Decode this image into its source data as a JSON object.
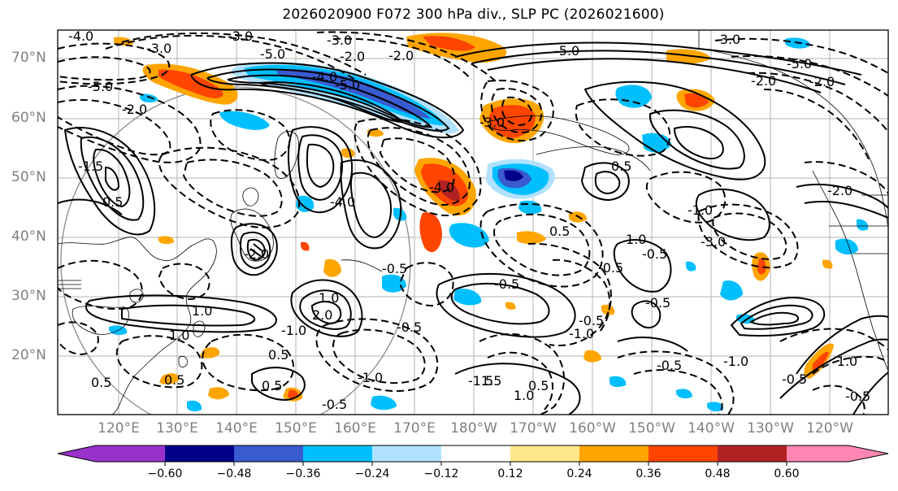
{
  "title": "2026020900 F072 300 hPa div., SLP PC (2026021600)",
  "lat_labels": [
    "70°N",
    "60°N",
    "50°N",
    "40°N",
    "30°N",
    "20°N"
  ],
  "lon_labels": [
    "120°E",
    "130°E",
    "140°E",
    "150°E",
    "160°E",
    "170°E",
    "180°W",
    "170°W",
    "160°W",
    "150°W",
    "140°W",
    "130°W",
    "120°W"
  ],
  "colorbar": {
    "ticks": [
      "−0.60",
      "−0.48",
      "−0.36",
      "−0.24",
      "−0.12",
      "0.12",
      "0.24",
      "0.36",
      "0.48",
      "0.60"
    ],
    "colors": [
      "#9932cc",
      "#00008b",
      "#3a5bcf",
      "#00bfff",
      "#b0e2ff",
      "#ffffff",
      "#ffe88a",
      "#ffa500",
      "#ff4500",
      "#b22222",
      "#ff86b3"
    ]
  },
  "contour_labels": [
    "-4.0",
    "-3.0",
    "-5.0",
    "-2.0",
    "-3.0",
    "-5.0",
    "-2.0",
    "-5.0",
    "-3.0",
    "-2.0",
    "-5.0",
    "-4.0",
    "-5.0",
    "-2.0",
    "-1.5",
    "-3.0",
    "-3.0",
    "-4.0",
    "-4.0",
    "-2.0",
    "-0.5",
    "0.5",
    "0.5",
    "0.5",
    "1.0",
    "1.0",
    "0.5",
    "1.5",
    "2.0",
    "0.5",
    "1.0",
    "0.5",
    "1.0",
    "-0.5",
    "-1.0",
    "-0.5",
    "-1.5",
    "-1.0",
    "-0.5",
    "0.5",
    "1.0",
    "-0.5",
    "-0.5",
    "-0.5",
    "-3.0",
    "-1.0",
    "-0.5",
    "-0.5",
    "-1.0",
    "-2.0",
    "-0.5",
    "-0.5",
    "-1.0",
    "-2.0",
    "0.5",
    "-1.0"
  ]
}
